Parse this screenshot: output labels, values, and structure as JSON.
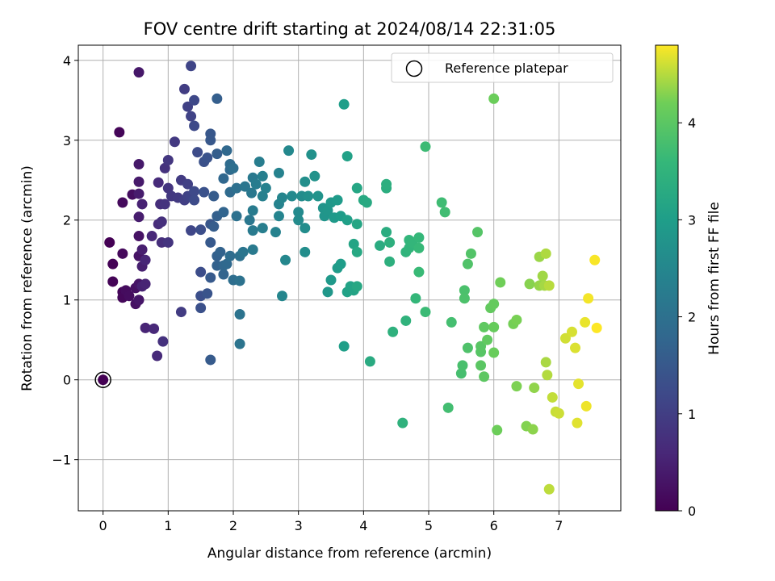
{
  "chart_data": {
    "type": "scatter",
    "title": "FOV centre drift starting at 2024/08/14 22:31:05",
    "xlabel": "Angular distance from reference (arcmin)",
    "ylabel": "Rotation from reference (arcmin)",
    "xlim": [
      -0.38,
      7.95
    ],
    "ylim": [
      -1.64,
      4.19
    ],
    "xticks": [
      0,
      1,
      2,
      3,
      4,
      5,
      6,
      7
    ],
    "xtick_labels": [
      "0",
      "1",
      "2",
      "3",
      "4",
      "5",
      "6",
      "7"
    ],
    "yticks": [
      -1,
      0,
      1,
      2,
      3,
      4
    ],
    "ytick_labels": [
      "−1",
      "0",
      "1",
      "2",
      "3",
      "4"
    ],
    "grid": true,
    "legend": {
      "location": "upper right",
      "entries": [
        "Reference platepar"
      ]
    },
    "colorbar": {
      "label": "Hours from first FF file",
      "range": [
        0,
        4.8
      ],
      "ticks": [
        0,
        1,
        2,
        3,
        4
      ],
      "tick_labels": [
        "0",
        "1",
        "2",
        "3",
        "4"
      ],
      "colormap": "viridis"
    },
    "reference_point": {
      "x": 0,
      "y": 0,
      "label": "Reference platepar"
    },
    "series": [
      {
        "points": [
          [
            2.85,
            2.87
          ],
          [
            2.4,
            2.73
          ],
          [
            2.7,
            2.59
          ],
          [
            2.3,
            2.53
          ],
          [
            2.18,
            2.42
          ],
          [
            2.05,
            2.4
          ],
          [
            2.9,
            2.3
          ],
          [
            3.05,
            2.3
          ],
          [
            3.15,
            2.3
          ],
          [
            2.7,
            2.2
          ],
          [
            3.0,
            2.1
          ],
          [
            2.7,
            2.05
          ],
          [
            2.25,
            2.0
          ],
          [
            2.45,
            1.9
          ],
          [
            2.1,
            1.55
          ],
          [
            2.0,
            1.25
          ],
          [
            1.9,
            2.87
          ],
          [
            1.75,
            2.83
          ],
          [
            1.6,
            2.78
          ],
          [
            1.55,
            2.73
          ],
          [
            1.95,
            2.63
          ],
          [
            1.8,
            1.6
          ],
          [
            1.9,
            1.45
          ],
          [
            1.85,
            1.32
          ],
          [
            1.6,
            1.08
          ],
          [
            1.85,
            2.1
          ],
          [
            1.5,
            1.35
          ],
          [
            1.0,
            1.72
          ],
          [
            0.9,
            1.72
          ],
          [
            0.95,
            2.65
          ],
          [
            0.85,
            2.47
          ],
          [
            1.0,
            2.4
          ],
          [
            1.3,
            2.45
          ],
          [
            1.25,
            3.64
          ],
          [
            1.4,
            3.5
          ],
          [
            1.3,
            3.42
          ],
          [
            1.35,
            3.3
          ],
          [
            1.4,
            3.18
          ],
          [
            1.45,
            2.85
          ],
          [
            1.2,
            2.5
          ],
          [
            1.55,
            2.35
          ],
          [
            1.4,
            2.36
          ],
          [
            1.35,
            2.3
          ],
          [
            1.4,
            2.25
          ],
          [
            1.25,
            2.25
          ],
          [
            1.15,
            2.28
          ],
          [
            1.05,
            2.3
          ],
          [
            0.95,
            2.2
          ],
          [
            0.88,
            2.2
          ],
          [
            0.9,
            1.98
          ],
          [
            0.85,
            1.95
          ],
          [
            0.75,
            1.8
          ],
          [
            0.55,
            1.8
          ],
          [
            0.6,
            1.63
          ],
          [
            0.55,
            1.55
          ],
          [
            0.6,
            1.42
          ],
          [
            0.55,
            1.2
          ],
          [
            0.65,
            1.2
          ],
          [
            0.6,
            1.17
          ],
          [
            0.5,
            1.15
          ],
          [
            0.35,
            1.12
          ],
          [
            0.3,
            1.1
          ],
          [
            0.4,
            1.05
          ],
          [
            0.3,
            1.03
          ],
          [
            0.55,
            1.0
          ],
          [
            0.5,
            0.95
          ],
          [
            0.65,
            0.65
          ],
          [
            0.78,
            0.64
          ],
          [
            0.92,
            0.48
          ],
          [
            0.83,
            0.3
          ],
          [
            0.1,
            1.72
          ],
          [
            0.15,
            1.45
          ],
          [
            0.15,
            1.23
          ],
          [
            0.3,
            1.58
          ],
          [
            0.3,
            2.22
          ],
          [
            0.25,
            3.1
          ],
          [
            0.55,
            3.85
          ],
          [
            1.35,
            3.93
          ],
          [
            1.1,
            2.98
          ],
          [
            1.0,
            2.75
          ],
          [
            0.55,
            2.7
          ],
          [
            0.55,
            2.48
          ],
          [
            0.55,
            2.33
          ],
          [
            0.45,
            2.32
          ],
          [
            0.6,
            2.2
          ],
          [
            0.55,
            2.04
          ],
          [
            0.65,
            1.5
          ],
          [
            1.3,
            2.3
          ],
          [
            1.35,
            1.87
          ],
          [
            1.5,
            1.88
          ],
          [
            1.65,
            1.95
          ],
          [
            1.75,
            3.52
          ],
          [
            1.65,
            3.08
          ],
          [
            1.65,
            3.0
          ],
          [
            1.7,
            2.3
          ],
          [
            1.75,
            2.05
          ],
          [
            1.7,
            1.92
          ],
          [
            1.65,
            1.72
          ],
          [
            1.75,
            1.55
          ],
          [
            1.75,
            1.43
          ],
          [
            1.85,
            1.43
          ],
          [
            1.65,
            1.28
          ],
          [
            1.5,
            1.05
          ],
          [
            1.5,
            0.9
          ],
          [
            1.2,
            0.85
          ],
          [
            1.65,
            0.25
          ],
          [
            1.85,
            2.52
          ],
          [
            1.95,
            2.35
          ],
          [
            1.95,
            2.7
          ],
          [
            2.0,
            2.65
          ],
          [
            2.05,
            2.05
          ],
          [
            1.95,
            1.55
          ],
          [
            2.1,
            1.24
          ],
          [
            2.15,
            1.6
          ],
          [
            2.1,
            0.82
          ],
          [
            2.1,
            0.45
          ],
          [
            2.3,
            1.63
          ],
          [
            2.3,
            1.87
          ],
          [
            2.3,
            2.12
          ],
          [
            2.28,
            2.34
          ],
          [
            2.35,
            2.45
          ],
          [
            2.45,
            2.55
          ],
          [
            2.5,
            2.4
          ],
          [
            2.45,
            2.3
          ],
          [
            2.75,
            2.28
          ],
          [
            2.65,
            1.85
          ],
          [
            2.8,
            1.5
          ],
          [
            2.75,
            1.05
          ],
          [
            3.0,
            2.0
          ],
          [
            3.1,
            1.9
          ],
          [
            3.1,
            1.6
          ],
          [
            3.1,
            2.48
          ],
          [
            3.2,
            2.82
          ],
          [
            3.25,
            2.55
          ],
          [
            3.3,
            2.3
          ],
          [
            3.38,
            2.15
          ],
          [
            3.4,
            2.05
          ],
          [
            3.45,
            2.12
          ],
          [
            3.5,
            2.22
          ],
          [
            3.55,
            2.03
          ],
          [
            3.6,
            2.25
          ],
          [
            3.65,
            2.05
          ],
          [
            3.75,
            2.0
          ],
          [
            3.9,
            1.95
          ],
          [
            3.9,
            2.4
          ],
          [
            4.0,
            2.25
          ],
          [
            4.05,
            2.22
          ],
          [
            3.7,
            3.45
          ],
          [
            3.75,
            2.8
          ],
          [
            3.6,
            1.4
          ],
          [
            3.65,
            1.45
          ],
          [
            3.5,
            1.25
          ],
          [
            3.45,
            1.1
          ],
          [
            3.8,
            1.17
          ],
          [
            3.85,
            1.12
          ],
          [
            3.9,
            1.17
          ],
          [
            3.75,
            1.1
          ],
          [
            3.85,
            1.7
          ],
          [
            3.9,
            1.6
          ],
          [
            3.7,
            0.42
          ],
          [
            4.1,
            0.23
          ],
          [
            4.25,
            1.68
          ],
          [
            4.35,
            1.85
          ],
          [
            4.35,
            2.4
          ],
          [
            4.35,
            2.45
          ],
          [
            4.4,
            1.72
          ],
          [
            4.4,
            1.48
          ],
          [
            4.45,
            0.6
          ],
          [
            4.6,
            -0.54
          ],
          [
            4.65,
            0.74
          ],
          [
            4.65,
            1.6
          ],
          [
            4.7,
            1.65
          ],
          [
            4.7,
            1.75
          ],
          [
            4.75,
            1.72
          ],
          [
            4.8,
            1.02
          ],
          [
            4.85,
            1.78
          ],
          [
            4.85,
            1.65
          ],
          [
            4.85,
            1.35
          ],
          [
            4.95,
            0.85
          ],
          [
            4.95,
            2.92
          ],
          [
            5.2,
            2.22
          ],
          [
            5.25,
            2.1
          ],
          [
            5.35,
            0.72
          ],
          [
            5.3,
            -0.35
          ],
          [
            5.5,
            0.08
          ],
          [
            5.52,
            0.18
          ],
          [
            5.55,
            1.12
          ],
          [
            5.55,
            1.02
          ],
          [
            5.6,
            0.4
          ],
          [
            5.6,
            1.45
          ],
          [
            5.65,
            1.58
          ],
          [
            5.75,
            1.85
          ],
          [
            5.8,
            0.35
          ],
          [
            5.8,
            0.42
          ],
          [
            5.8,
            0.18
          ],
          [
            5.85,
            0.04
          ],
          [
            5.85,
            0.66
          ],
          [
            5.9,
            0.5
          ],
          [
            5.95,
            0.9
          ],
          [
            6.0,
            0.95
          ],
          [
            6.0,
            0.66
          ],
          [
            6.0,
            0.34
          ],
          [
            6.0,
            3.52
          ],
          [
            6.05,
            -0.63
          ],
          [
            6.1,
            1.22
          ],
          [
            6.3,
            0.7
          ],
          [
            6.35,
            0.75
          ],
          [
            6.35,
            -0.08
          ],
          [
            6.5,
            -0.58
          ],
          [
            6.55,
            1.2
          ],
          [
            6.6,
            -0.62
          ],
          [
            6.62,
            -0.1
          ],
          [
            6.7,
            1.18
          ],
          [
            6.7,
            1.54
          ],
          [
            6.75,
            1.3
          ],
          [
            6.78,
            1.18
          ],
          [
            6.8,
            0.22
          ],
          [
            6.8,
            1.58
          ],
          [
            6.85,
            1.18
          ],
          [
            6.82,
            0.06
          ],
          [
            6.85,
            -1.37
          ],
          [
            6.9,
            -0.22
          ],
          [
            6.95,
            -0.4
          ],
          [
            7.0,
            -0.42
          ],
          [
            7.1,
            0.52
          ],
          [
            7.2,
            0.6
          ],
          [
            7.25,
            0.4
          ],
          [
            7.3,
            -0.05
          ],
          [
            7.28,
            -0.54
          ],
          [
            7.4,
            0.72
          ],
          [
            7.42,
            -0.33
          ],
          [
            7.45,
            1.02
          ],
          [
            7.55,
            1.5
          ],
          [
            7.58,
            0.65
          ]
        ]
      }
    ]
  }
}
